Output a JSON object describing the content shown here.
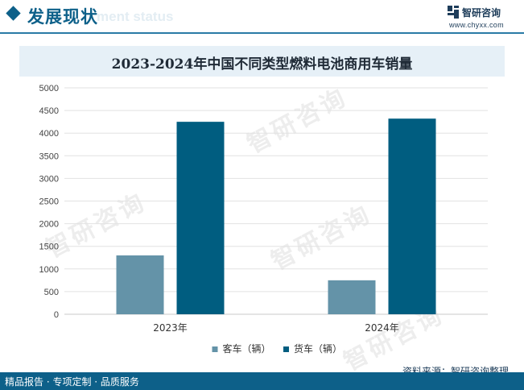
{
  "header": {
    "section_title": "发展现状",
    "section_ghost": "ment status",
    "logo_name": "智研咨询",
    "logo_url": "www.chyxx.com"
  },
  "watermark_text": "智研咨询",
  "source_text": "资料来源：智研咨询整理",
  "footer_services": "精品报告 · 专项定制 · 品质服务",
  "colors": {
    "brand": "#0d6089",
    "bus": "#6493a8",
    "truck": "#005d80"
  },
  "chart_data": {
    "type": "bar",
    "title": "2023-2024年中国不同类型燃料电池商用车销量",
    "categories": [
      "2023年",
      "2024年"
    ],
    "series": [
      {
        "name": "客车（辆）",
        "values": [
          1300,
          750
        ]
      },
      {
        "name": "货车（辆）",
        "values": [
          4250,
          4320
        ]
      }
    ],
    "ylim": [
      0,
      5000
    ],
    "yticks": [
      "0",
      "500",
      "1000",
      "1500",
      "2000",
      "2500",
      "3000",
      "3500",
      "4000",
      "4500",
      "5000"
    ],
    "grid": true,
    "legend": "bottom"
  }
}
